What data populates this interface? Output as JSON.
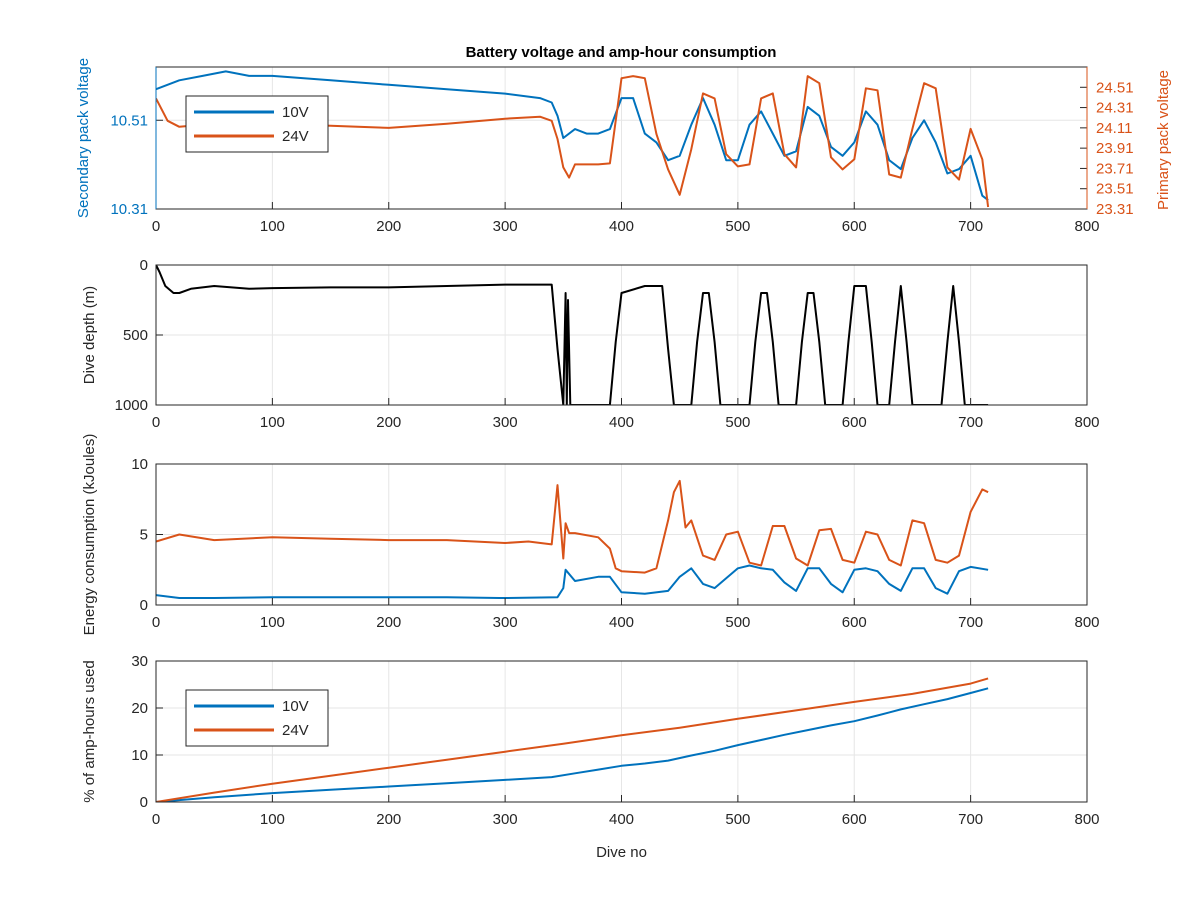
{
  "figure": {
    "title": "Battery voltage and amp-hour consumption"
  },
  "colors": {
    "c10": "#0072BD",
    "c24": "#D95319",
    "depth": "#000000",
    "grid": "#e6e6e6",
    "axis": "#262626"
  },
  "chart_data": [
    {
      "type": "line",
      "title": "Battery voltage and amp-hour consumption",
      "xlabel": "",
      "ylabel": "Secondary pack voltage",
      "ylabel_right": "Primary pack voltage",
      "xlim": [
        0,
        800
      ],
      "ylim": [
        10.31,
        10.63
      ],
      "ylim_right": [
        23.31,
        24.71
      ],
      "xticks": [
        0,
        100,
        200,
        300,
        400,
        500,
        600,
        700,
        800
      ],
      "yticks": [
        10.31,
        10.51
      ],
      "yticks_right": [
        23.31,
        23.51,
        23.71,
        23.91,
        24.11,
        24.31,
        24.51
      ],
      "legend": {
        "position": "top-left",
        "entries": [
          "10V",
          "24V"
        ]
      },
      "grid": true,
      "series": [
        {
          "name": "10V",
          "axis": "left",
          "x": [
            0,
            20,
            40,
            60,
            80,
            100,
            150,
            200,
            250,
            300,
            330,
            340,
            345,
            350,
            360,
            370,
            380,
            390,
            400,
            410,
            420,
            430,
            440,
            450,
            460,
            470,
            480,
            490,
            500,
            510,
            520,
            530,
            540,
            550,
            560,
            570,
            580,
            590,
            600,
            610,
            620,
            630,
            640,
            650,
            660,
            670,
            680,
            690,
            700,
            710,
            715
          ],
          "y": [
            10.58,
            10.6,
            10.61,
            10.62,
            10.61,
            10.61,
            10.6,
            10.59,
            10.58,
            10.57,
            10.56,
            10.55,
            10.52,
            10.47,
            10.49,
            10.48,
            10.48,
            10.49,
            10.56,
            10.56,
            10.48,
            10.46,
            10.42,
            10.43,
            10.5,
            10.56,
            10.5,
            10.42,
            10.42,
            10.5,
            10.53,
            10.48,
            10.43,
            10.44,
            10.54,
            10.52,
            10.45,
            10.43,
            10.46,
            10.53,
            10.5,
            10.42,
            10.4,
            10.47,
            10.51,
            10.46,
            10.39,
            10.4,
            10.43,
            10.34,
            10.33
          ]
        },
        {
          "name": "24V",
          "axis": "right",
          "x": [
            0,
            10,
            20,
            40,
            60,
            80,
            100,
            150,
            200,
            250,
            300,
            330,
            340,
            345,
            350,
            355,
            360,
            370,
            380,
            390,
            400,
            410,
            420,
            430,
            440,
            450,
            460,
            470,
            480,
            490,
            500,
            510,
            520,
            530,
            540,
            550,
            560,
            570,
            580,
            590,
            600,
            610,
            620,
            630,
            640,
            650,
            660,
            670,
            680,
            690,
            700,
            710,
            715
          ],
          "y": [
            24.4,
            24.18,
            24.12,
            24.14,
            24.15,
            24.16,
            24.15,
            24.13,
            24.11,
            24.15,
            24.2,
            24.22,
            24.18,
            24.0,
            23.72,
            23.62,
            23.75,
            23.75,
            23.75,
            23.76,
            24.6,
            24.62,
            24.6,
            24.05,
            23.7,
            23.45,
            23.9,
            24.45,
            24.4,
            23.85,
            23.73,
            23.75,
            24.4,
            24.45,
            23.85,
            23.72,
            24.62,
            24.55,
            23.82,
            23.7,
            23.8,
            24.5,
            24.48,
            23.65,
            23.62,
            24.1,
            24.55,
            24.5,
            23.72,
            23.6,
            24.1,
            23.8,
            23.33
          ]
        }
      ]
    },
    {
      "type": "line",
      "title": "",
      "xlabel": "",
      "ylabel": "Dive depth (m)",
      "xlim": [
        0,
        800
      ],
      "ylim": [
        0,
        1000
      ],
      "y_reversed": true,
      "xticks": [
        0,
        100,
        200,
        300,
        400,
        500,
        600,
        700,
        800
      ],
      "yticks": [
        0,
        500,
        1000
      ],
      "grid": true,
      "series": [
        {
          "name": "",
          "x": [
            0,
            3,
            8,
            15,
            20,
            30,
            50,
            80,
            100,
            150,
            200,
            250,
            300,
            340,
            345,
            350,
            352,
            353,
            354,
            356,
            360,
            390,
            395,
            400,
            420,
            435,
            440,
            445,
            460,
            465,
            470,
            475,
            480,
            485,
            490,
            500,
            510,
            515,
            520,
            525,
            530,
            535,
            550,
            555,
            560,
            565,
            570,
            575,
            590,
            595,
            600,
            610,
            615,
            620,
            630,
            635,
            640,
            645,
            650,
            675,
            680,
            685,
            690,
            695,
            715
          ],
          "y": [
            0,
            50,
            150,
            200,
            200,
            170,
            150,
            170,
            165,
            160,
            160,
            150,
            140,
            140,
            600,
            1000,
            200,
            1000,
            250,
            1000,
            1000,
            1000,
            550,
            200,
            150,
            150,
            600,
            1000,
            1000,
            550,
            200,
            200,
            550,
            1000,
            1000,
            1000,
            1000,
            550,
            200,
            200,
            550,
            1000,
            1000,
            550,
            200,
            200,
            550,
            1000,
            1000,
            550,
            150,
            150,
            550,
            1000,
            1000,
            550,
            150,
            550,
            1000,
            1000,
            550,
            150,
            550,
            1000,
            1000
          ]
        }
      ]
    },
    {
      "type": "line",
      "title": "",
      "xlabel": "",
      "ylabel": "Energy consumption (kJoules)",
      "xlim": [
        0,
        800
      ],
      "ylim": [
        0,
        10
      ],
      "xticks": [
        0,
        100,
        200,
        300,
        400,
        500,
        600,
        700,
        800
      ],
      "yticks": [
        0,
        5,
        10
      ],
      "grid": true,
      "series": [
        {
          "name": "10V",
          "x": [
            0,
            20,
            50,
            100,
            150,
            200,
            250,
            295,
            300,
            345,
            350,
            352,
            360,
            380,
            390,
            400,
            420,
            440,
            450,
            460,
            470,
            480,
            500,
            510,
            520,
            530,
            540,
            550,
            560,
            570,
            580,
            590,
            600,
            610,
            620,
            630,
            640,
            650,
            660,
            670,
            680,
            690,
            700,
            715
          ],
          "y": [
            0.7,
            0.5,
            0.5,
            0.55,
            0.55,
            0.55,
            0.55,
            0.5,
            0.5,
            0.55,
            1.2,
            2.5,
            1.7,
            2.0,
            2.0,
            0.9,
            0.8,
            1.0,
            2.0,
            2.6,
            1.5,
            1.2,
            2.6,
            2.8,
            2.6,
            2.5,
            1.6,
            1.0,
            2.6,
            2.6,
            1.5,
            0.9,
            2.5,
            2.6,
            2.4,
            1.5,
            1.0,
            2.6,
            2.6,
            1.2,
            0.8,
            2.4,
            2.7,
            2.5
          ]
        },
        {
          "name": "24V",
          "x": [
            0,
            20,
            50,
            100,
            150,
            200,
            250,
            300,
            320,
            340,
            345,
            350,
            352,
            355,
            360,
            380,
            390,
            395,
            400,
            420,
            430,
            440,
            445,
            450,
            455,
            460,
            470,
            480,
            490,
            500,
            510,
            520,
            530,
            540,
            550,
            560,
            570,
            580,
            590,
            600,
            610,
            620,
            630,
            640,
            650,
            660,
            670,
            680,
            690,
            700,
            710,
            715
          ],
          "y": [
            4.5,
            5.0,
            4.6,
            4.8,
            4.7,
            4.6,
            4.6,
            4.4,
            4.5,
            4.3,
            8.5,
            3.3,
            5.8,
            5.1,
            5.1,
            4.8,
            4.0,
            2.6,
            2.4,
            2.3,
            2.6,
            6.0,
            8.0,
            8.8,
            5.5,
            6.0,
            3.5,
            3.2,
            5.0,
            5.2,
            3.0,
            2.8,
            5.6,
            5.6,
            3.3,
            2.8,
            5.3,
            5.4,
            3.2,
            3.0,
            5.2,
            5.0,
            3.2,
            2.8,
            6.0,
            5.8,
            3.2,
            3.0,
            3.5,
            6.6,
            8.2,
            8.0
          ]
        }
      ]
    },
    {
      "type": "line",
      "title": "",
      "xlabel": "Dive no",
      "ylabel": "% of amp-hours used",
      "xlim": [
        0,
        800
      ],
      "ylim": [
        0,
        30
      ],
      "xticks": [
        0,
        100,
        200,
        300,
        400,
        500,
        600,
        700,
        800
      ],
      "yticks": [
        0,
        10,
        20,
        30
      ],
      "legend": {
        "position": "top-left",
        "entries": [
          "10V",
          "24V"
        ]
      },
      "grid": true,
      "series": [
        {
          "name": "10V",
          "x": [
            0,
            50,
            100,
            150,
            200,
            250,
            300,
            340,
            360,
            380,
            400,
            420,
            440,
            460,
            480,
            500,
            520,
            540,
            560,
            580,
            600,
            620,
            640,
            660,
            680,
            700,
            715
          ],
          "y": [
            0,
            1.0,
            1.9,
            2.6,
            3.3,
            4.0,
            4.7,
            5.3,
            6.1,
            6.9,
            7.7,
            8.2,
            8.8,
            9.9,
            10.9,
            12.1,
            13.2,
            14.3,
            15.3,
            16.3,
            17.2,
            18.4,
            19.7,
            20.8,
            21.9,
            23.2,
            24.2
          ]
        },
        {
          "name": "24V",
          "x": [
            0,
            50,
            100,
            150,
            200,
            250,
            300,
            350,
            400,
            450,
            500,
            550,
            600,
            650,
            700,
            715
          ],
          "y": [
            0,
            2.0,
            3.9,
            5.6,
            7.3,
            9.0,
            10.7,
            12.4,
            14.2,
            15.8,
            17.7,
            19.5,
            21.3,
            23.0,
            25.2,
            26.3
          ]
        }
      ]
    }
  ]
}
